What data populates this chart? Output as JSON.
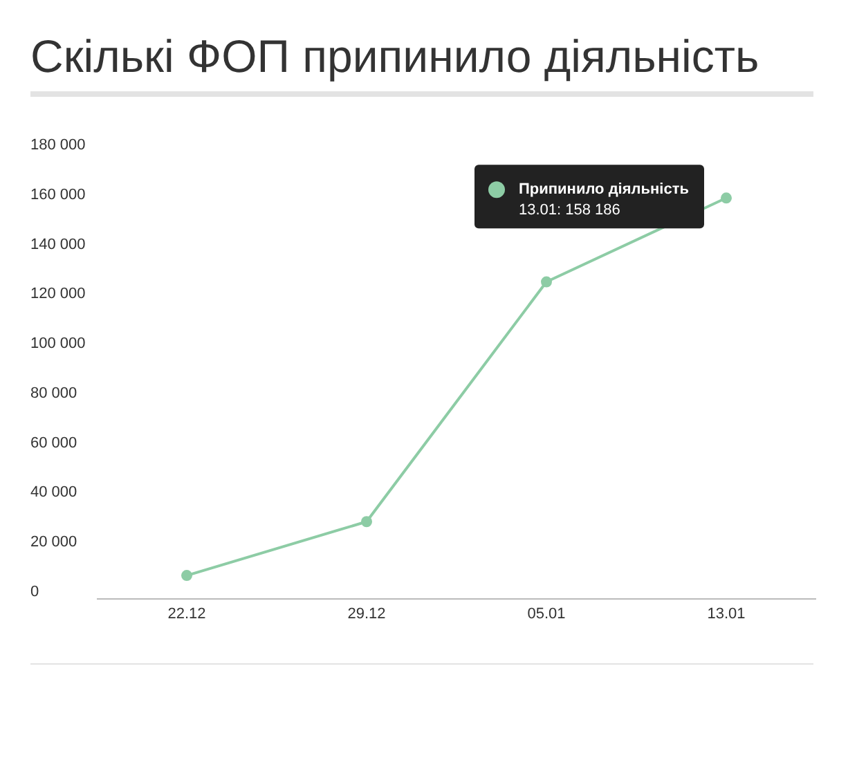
{
  "chart_data": {
    "type": "line",
    "title": "Скількі ФОП припинило діяльність",
    "categories": [
      "22.12",
      "29.12",
      "05.01",
      "13.01"
    ],
    "series": [
      {
        "name": "Припинило діяльність",
        "color": "#8dcca5",
        "values": [
          6100,
          27800,
          124400,
          158186
        ]
      }
    ],
    "ylim": [
      0,
      180000
    ],
    "yticks": [
      {
        "value": 0,
        "label": "0"
      },
      {
        "value": 20000,
        "label": "20 000"
      },
      {
        "value": 40000,
        "label": "40 000"
      },
      {
        "value": 60000,
        "label": "60 000"
      },
      {
        "value": 80000,
        "label": "80 000"
      },
      {
        "value": 100000,
        "label": "100 000"
      },
      {
        "value": 120000,
        "label": "120 000"
      },
      {
        "value": 140000,
        "label": "140 000"
      },
      {
        "value": 160000,
        "label": "160 000"
      },
      {
        "value": 180000,
        "label": "180 000"
      }
    ],
    "annotations": [
      "13.01: 158 186"
    ],
    "legend": "top right",
    "marker": "circle",
    "grid": false
  }
}
